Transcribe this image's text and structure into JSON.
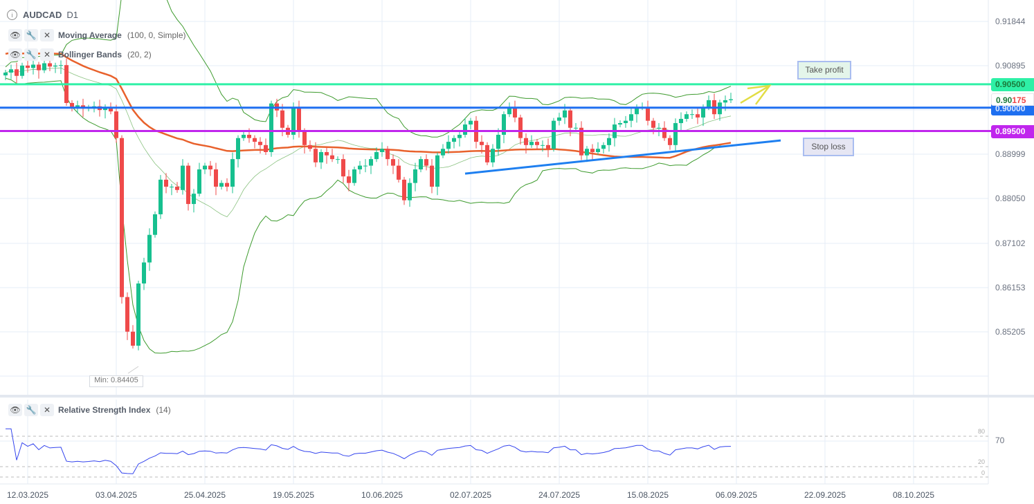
{
  "header": {
    "symbol": "AUDCAD",
    "timeframe": "D1"
  },
  "indicators": [
    {
      "name": "Moving Average",
      "params": "(100, 0, Simple)"
    },
    {
      "name": "Bollinger Bands",
      "params": "(20, 2)"
    }
  ],
  "rsi": {
    "name": "Relative Strength Index",
    "params": "(14)",
    "levels": [
      "80",
      "20",
      "0"
    ],
    "current_label": "70"
  },
  "price_axis": [
    "0.91844",
    "0.90895",
    "0.88999",
    "0.88050",
    "0.87102",
    "0.86153",
    "0.85205"
  ],
  "price_tags": {
    "take_profit_level": "0.90500",
    "current_price_prefix": "0.90",
    "current_price_suffix": "175",
    "support_level": "0.90000",
    "stop_loss_level": "0.89500"
  },
  "notes": {
    "take_profit": "Take profit",
    "stop_loss": "Stop loss",
    "min_label": "Min: 0.84405"
  },
  "dates": [
    "12.03.2025",
    "03.04.2025",
    "25.04.2025",
    "19.05.2025",
    "10.06.2025",
    "02.07.2025",
    "24.07.2025",
    "15.08.2025",
    "06.09.2025",
    "22.09.2025",
    "08.10.2025"
  ],
  "colors": {
    "up": "#17c08f",
    "down": "#ef4a4a",
    "take_profit": "#2ef0a6",
    "support": "#1e6ff0",
    "stop_loss": "#c026ed",
    "ma": "#e8612c",
    "bb": "#3c9a2c",
    "rsi": "#3344ee",
    "trend": "#1e7ff0",
    "arrow": "#e2dd44"
  },
  "chart_data": {
    "type": "candlestick",
    "symbol": "AUDCAD",
    "timeframe": "D1",
    "ylim": [
      0.8405,
      0.921
    ],
    "closes": [
      0.9075,
      0.9082,
      0.9068,
      0.909,
      0.9085,
      0.9092,
      0.908,
      0.9095,
      0.9088,
      0.909,
      0.9091,
      0.901,
      0.9002,
      0.9005,
      0.8998,
      0.9,
      0.9003,
      0.8995,
      0.9001,
      0.8992,
      0.8935,
      0.8595,
      0.8521,
      0.8491,
      0.8624,
      0.8669,
      0.8728,
      0.8772,
      0.8846,
      0.8831,
      0.8831,
      0.8824,
      0.8876,
      0.8794,
      0.8816,
      0.8868,
      0.8876,
      0.8868,
      0.8831,
      0.8839,
      0.8831,
      0.889,
      0.8935,
      0.8942,
      0.8935,
      0.8927,
      0.892,
      0.8905,
      0.9009,
      0.8994,
      0.8957,
      0.8942,
      0.9001,
      0.895,
      0.892,
      0.8912,
      0.8883,
      0.8905,
      0.8898,
      0.889,
      0.889,
      0.8853,
      0.8839,
      0.8868,
      0.8876,
      0.8876,
      0.889,
      0.8905,
      0.8912,
      0.889,
      0.8876,
      0.8846,
      0.8802,
      0.8839,
      0.8868,
      0.889,
      0.8876,
      0.8831,
      0.8898,
      0.8912,
      0.8927,
      0.8935,
      0.8942,
      0.8964,
      0.8972,
      0.8927,
      0.892,
      0.8883,
      0.8912,
      0.8942,
      0.8986,
      0.9001,
      0.8979,
      0.8935,
      0.892,
      0.8927,
      0.892,
      0.892,
      0.8912,
      0.8972,
      0.8979,
      0.8994,
      0.8957,
      0.8957,
      0.8898,
      0.8912,
      0.8905,
      0.8912,
      0.892,
      0.8935,
      0.8964,
      0.8967,
      0.8972,
      0.8986,
      0.9001,
      0.9001,
      0.8972,
      0.8957,
      0.8957,
      0.8935,
      0.892,
      0.8967,
      0.8976,
      0.8986,
      0.8986,
      0.8979,
      0.9001,
      0.9016,
      0.8986,
      0.9011,
      0.9016,
      0.9018
    ],
    "horizontal_levels": [
      0.905,
      0.9,
      0.895
    ],
    "min_price": 0.84405,
    "trendline": {
      "from": {
        "bar": 83,
        "price": 0.8859
      },
      "to": {
        "bar": 140,
        "price": 0.893
      }
    },
    "arrow": {
      "from": {
        "bar": 133,
        "price": 0.901
      },
      "to": {
        "bar": 138,
        "price": 0.9047
      }
    }
  }
}
